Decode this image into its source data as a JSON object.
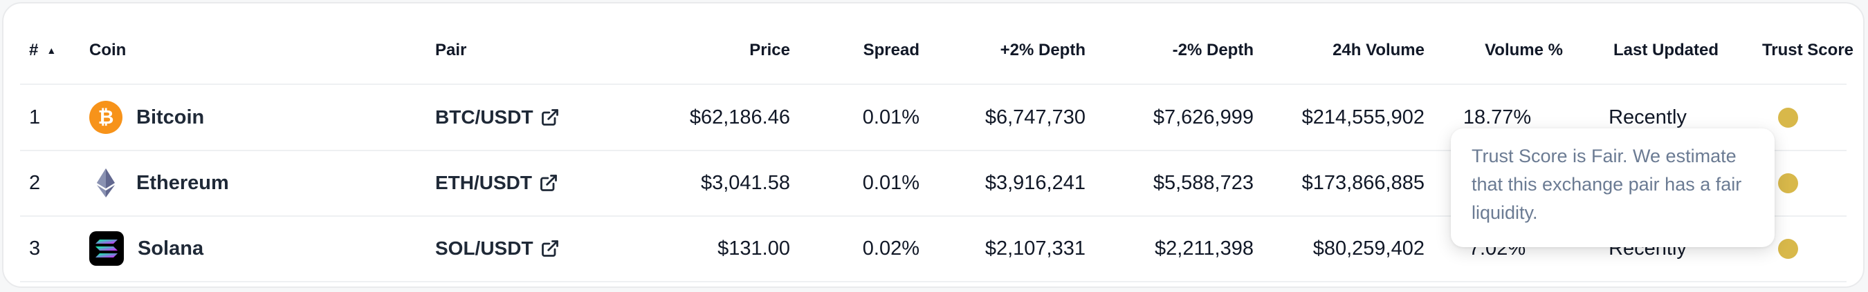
{
  "columns": {
    "rank": "#",
    "coin": "Coin",
    "pair": "Pair",
    "price": "Price",
    "spread": "Spread",
    "plus_depth": "+2% Depth",
    "minus_depth": "-2% Depth",
    "volume": "24h Volume",
    "volume_pct": "Volume %",
    "last_updated": "Last Updated",
    "trust_score": "Trust Score"
  },
  "sort_indicator": "▲",
  "rows": [
    {
      "rank": "1",
      "coin": "Bitcoin",
      "coin_icon": "bitcoin-icon",
      "icon_glyph": "₿",
      "pair": "BTC/USDT",
      "price": "$62,186.46",
      "spread": "0.01%",
      "plus_depth": "$6,747,730",
      "minus_depth": "$7,626,999",
      "volume": "$214,555,902",
      "volume_pct": "18.77%",
      "last_updated": "Recently",
      "trust_color": "#d8b84a"
    },
    {
      "rank": "2",
      "coin": "Ethereum",
      "coin_icon": "ethereum-icon",
      "pair": "ETH/USDT",
      "price": "$3,041.58",
      "spread": "0.01%",
      "plus_depth": "$3,916,241",
      "minus_depth": "$5,588,723",
      "volume": "$173,866,885",
      "volume_pct": "",
      "last_updated": "",
      "trust_color": "#d8b84a"
    },
    {
      "rank": "3",
      "coin": "Solana",
      "coin_icon": "solana-icon",
      "pair": "SOL/USDT",
      "price": "$131.00",
      "spread": "0.02%",
      "plus_depth": "$2,107,331",
      "minus_depth": "$2,211,398",
      "volume": "$80,259,402",
      "volume_pct": "7.02%",
      "last_updated": "Recently",
      "trust_color": "#d8b84a"
    }
  ],
  "tooltip": {
    "text": "Trust Score is Fair. We estimate that this exchange pair has a fair liquidity."
  }
}
